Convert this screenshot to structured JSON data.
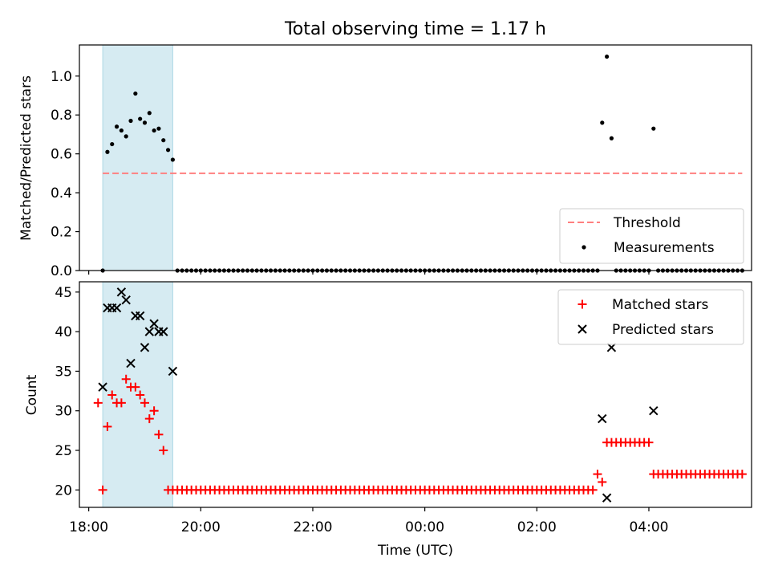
{
  "title": "Total observing time = 1.17 h",
  "colors": {
    "highlight": "#add8e6",
    "threshold": "#ff7f7f",
    "measurement": "#000000",
    "matched": "#ff0000",
    "predicted": "#000000"
  },
  "chart_data": [
    {
      "type": "scatter",
      "title": "Total observing time = 1.17 h",
      "xlabel": "",
      "ylabel": "Matched/Predicted stars",
      "xlim": [
        "17:50",
        "05:50"
      ],
      "ylim": [
        0,
        1.16
      ],
      "yticks": [
        0.0,
        0.2,
        0.4,
        0.6,
        0.8,
        1.0
      ],
      "ytick_labels": [
        "0.0",
        "0.2",
        "0.4",
        "0.6",
        "0.8",
        "1.0"
      ],
      "legend_placement": "lower-right",
      "highlight_span": [
        "18:15",
        "19:30"
      ],
      "threshold": {
        "name": "Threshold",
        "y": 0.5,
        "x_from": "18:15",
        "x_to": "05:40"
      },
      "series": [
        {
          "name": "Measurements",
          "marker": "dot",
          "points": [
            [
              "18:15",
              0.0
            ],
            [
              "18:20",
              0.61
            ],
            [
              "18:25",
              0.65
            ],
            [
              "18:30",
              0.74
            ],
            [
              "18:35",
              0.72
            ],
            [
              "18:40",
              0.69
            ],
            [
              "18:45",
              0.77
            ],
            [
              "18:50",
              0.91
            ],
            [
              "18:55",
              0.78
            ],
            [
              "19:00",
              0.76
            ],
            [
              "19:05",
              0.81
            ],
            [
              "19:10",
              0.72
            ],
            [
              "19:15",
              0.73
            ],
            [
              "19:20",
              0.67
            ],
            [
              "19:25",
              0.62
            ],
            [
              "19:30",
              0.57
            ],
            [
              "03:10",
              0.76
            ],
            [
              "03:15",
              1.1
            ],
            [
              "03:20",
              0.68
            ],
            [
              "04:05",
              0.73
            ]
          ],
          "zero_runs": [
            {
              "from": "19:35",
              "to": "03:05",
              "step_min": 5
            },
            {
              "from": "03:25",
              "to": "04:00",
              "step_min": 5
            },
            {
              "from": "04:10",
              "to": "05:40",
              "step_min": 5
            }
          ]
        }
      ]
    },
    {
      "type": "scatter",
      "xlabel": "Time (UTC)",
      "ylabel": "Count",
      "xlim": [
        "17:50",
        "05:50"
      ],
      "ylim": [
        17.8,
        46.3
      ],
      "xticks": [
        "18:00",
        "20:00",
        "22:00",
        "00:00",
        "02:00",
        "04:00"
      ],
      "xtick_labels": [
        "18:00",
        "20:00",
        "22:00",
        "00:00",
        "02:00",
        "04:00"
      ],
      "yticks": [
        20,
        25,
        30,
        35,
        40,
        45
      ],
      "ytick_labels": [
        "20",
        "25",
        "30",
        "35",
        "40",
        "45"
      ],
      "legend_placement": "upper-right",
      "highlight_span": [
        "18:15",
        "19:30"
      ],
      "series": [
        {
          "name": "Matched stars",
          "marker": "plus",
          "points": [
            [
              "18:10",
              31
            ],
            [
              "18:15",
              20
            ],
            [
              "18:20",
              28
            ],
            [
              "18:25",
              32
            ],
            [
              "18:30",
              31
            ],
            [
              "18:35",
              31
            ],
            [
              "18:40",
              34
            ],
            [
              "18:45",
              33
            ],
            [
              "18:50",
              33
            ],
            [
              "18:55",
              32
            ],
            [
              "19:00",
              31
            ],
            [
              "19:05",
              29
            ],
            [
              "19:10",
              30
            ],
            [
              "19:15",
              27
            ],
            [
              "19:20",
              25
            ],
            [
              "03:05",
              22
            ],
            [
              "03:10",
              21
            ],
            [
              "04:05",
              22
            ]
          ],
          "constant_runs": [
            {
              "from": "19:25",
              "to": "03:00",
              "step_min": 5,
              "y": 20
            },
            {
              "from": "03:15",
              "to": "04:00",
              "step_min": 5,
              "y": 26
            },
            {
              "from": "04:10",
              "to": "05:40",
              "step_min": 5,
              "y": 22
            }
          ]
        },
        {
          "name": "Predicted stars",
          "marker": "x",
          "points": [
            [
              "18:15",
              33
            ],
            [
              "18:20",
              43
            ],
            [
              "18:25",
              43
            ],
            [
              "18:30",
              43
            ],
            [
              "18:35",
              45
            ],
            [
              "18:40",
              44
            ],
            [
              "18:45",
              36
            ],
            [
              "18:50",
              42
            ],
            [
              "18:55",
              42
            ],
            [
              "19:00",
              38
            ],
            [
              "19:05",
              40
            ],
            [
              "19:10",
              41
            ],
            [
              "19:15",
              40
            ],
            [
              "19:20",
              40
            ],
            [
              "19:30",
              35
            ],
            [
              "03:10",
              29
            ],
            [
              "03:15",
              19
            ],
            [
              "03:20",
              38
            ],
            [
              "04:05",
              30
            ]
          ]
        }
      ]
    }
  ]
}
